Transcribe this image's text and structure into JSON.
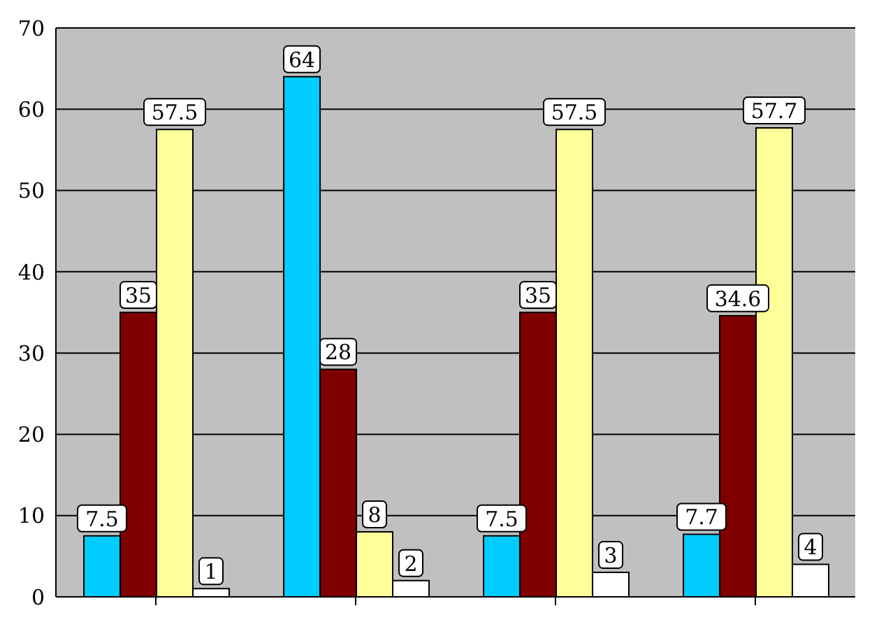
{
  "chart_data": {
    "type": "bar",
    "categories": [
      null,
      null,
      null,
      null
    ],
    "series": [
      {
        "color": "#00ccff",
        "values": [
          7.5,
          64,
          7.5,
          7.7
        ]
      },
      {
        "color": "#800000",
        "values": [
          35,
          28,
          35,
          34.6
        ]
      },
      {
        "color": "#ffff99",
        "values": [
          57.5,
          8,
          57.5,
          57.7
        ]
      },
      {
        "color": "#ffffff",
        "values": [
          1,
          2,
          3,
          4
        ]
      }
    ],
    "ylim": [
      0,
      70
    ],
    "yticks": [
      0,
      10,
      20,
      30,
      40,
      50,
      60,
      70
    ],
    "grid": "y",
    "legend": false,
    "data_labels": true
  }
}
